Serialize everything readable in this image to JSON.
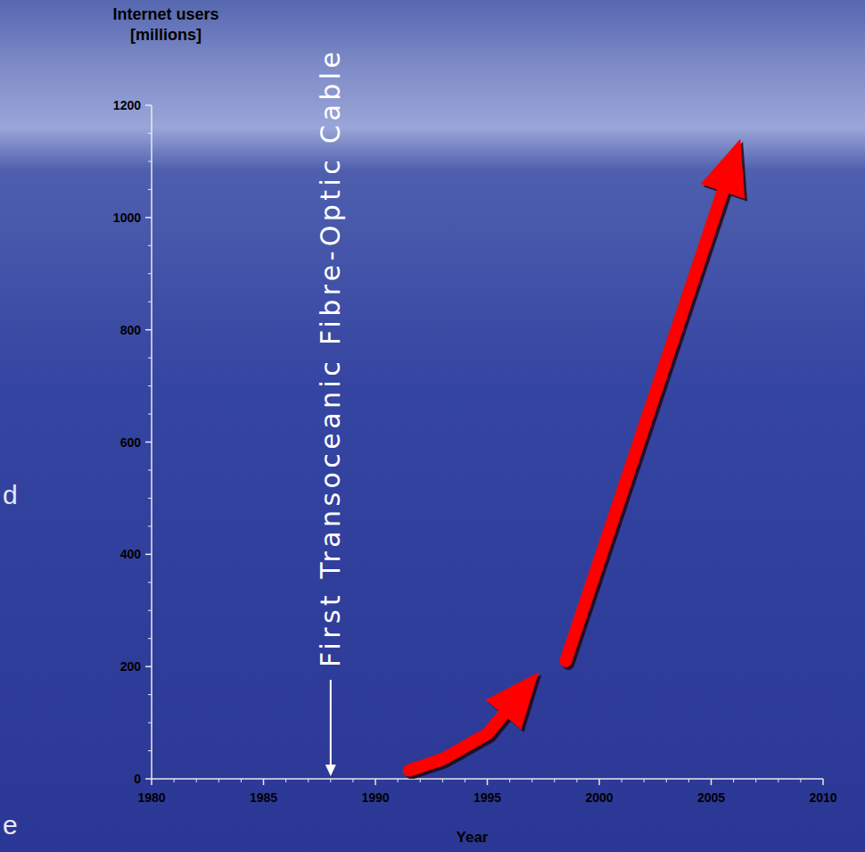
{
  "chart_data": {
    "type": "line",
    "ylabel": "Internet users [millions]",
    "xlabel": "Year",
    "xlim": [
      1980,
      2010
    ],
    "xticks": [
      1980,
      1985,
      1990,
      1995,
      2000,
      2005,
      2010
    ],
    "ylim": [
      0,
      1200
    ],
    "yticks": [
      0,
      200,
      400,
      600,
      800,
      1000,
      1200
    ],
    "grid": false,
    "marker": "arrow",
    "series": [
      {
        "color": "#ff0000",
        "x": [
          1991.5,
          1993,
          1995,
          1997.3
        ],
        "values": [
          15,
          35,
          80,
          190
        ]
      },
      {
        "color": "#ff0000",
        "x": [
          1998.5,
          2006.3
        ],
        "values": [
          210,
          1140
        ]
      }
    ],
    "annotations": [
      {
        "text": "First Transoceanic Fibre-Optic Cable",
        "x": 1988
      }
    ]
  },
  "side_text": [
    "d",
    "e"
  ]
}
